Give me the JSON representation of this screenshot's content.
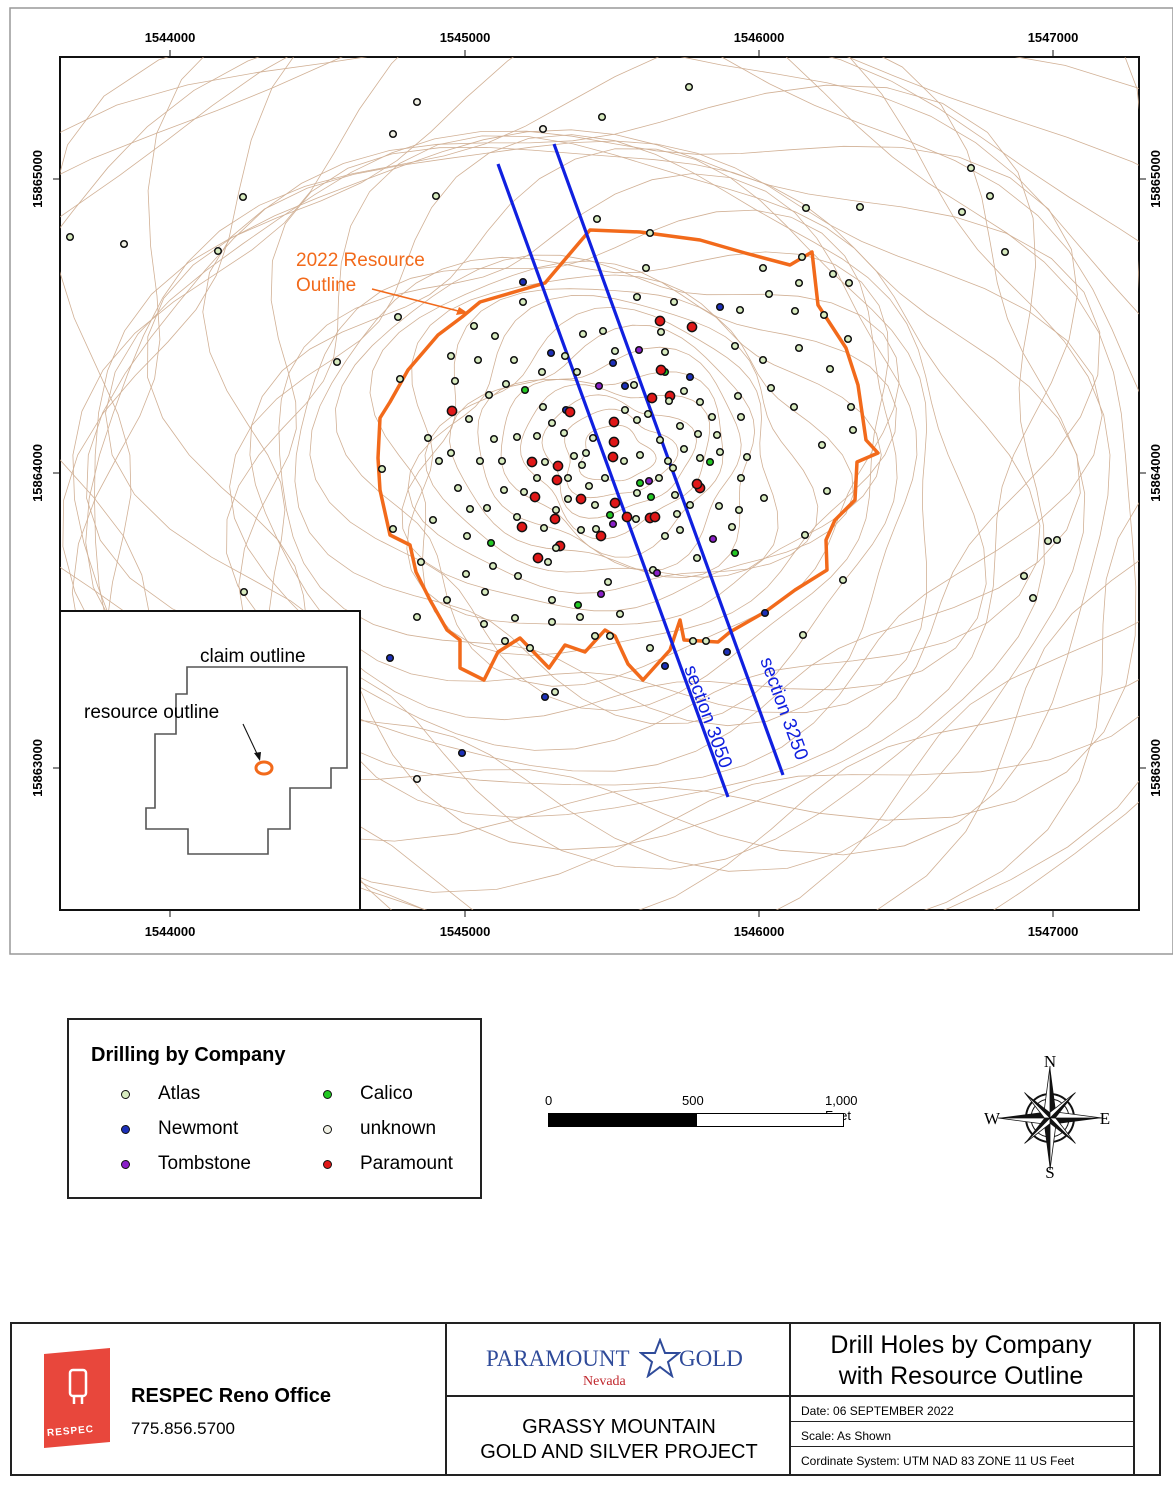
{
  "map": {
    "x_ticks": [
      "1544000",
      "1545000",
      "1546000",
      "1547000"
    ],
    "y_ticks": [
      "15865000",
      "15864000",
      "15863000"
    ],
    "resource_label_line1": "2022 Resource",
    "resource_label_line2": "Outline",
    "section_3050": "section 3050",
    "section_3250": "section 3250",
    "colors": {
      "resource_outline": "#f26a1b",
      "section_line": "#1020e0",
      "contour": "#c8a080"
    }
  },
  "inset": {
    "claim_label": "claim outline",
    "resource_label": "resource outline"
  },
  "legend": {
    "title": "Drilling by Company",
    "items": [
      {
        "label": "Atlas",
        "color": "#d8ecc0"
      },
      {
        "label": "Newmont",
        "color": "#1c2fb8"
      },
      {
        "label": "Tombstone",
        "color": "#8a1fc8"
      },
      {
        "label": "Calico",
        "color": "#22c822"
      },
      {
        "label": "unknown",
        "color": "#f2f2e6"
      },
      {
        "label": "Paramount",
        "color": "#e01818"
      }
    ]
  },
  "scalebar": {
    "label_0": "0",
    "label_mid": "500",
    "label_end": "1,000 Feet"
  },
  "compass": {
    "n": "N",
    "e": "E",
    "s": "S",
    "w": "W"
  },
  "titleblock": {
    "office": "RESPEC Reno Office",
    "phone": "775.856.5700",
    "logo_text": "RESPEC",
    "client_logo_main_left": "PARAMOUNT",
    "client_logo_main_right": "GOLD",
    "client_logo_sub": "Nevada",
    "project_line1": "GRASSY MOUNTAIN",
    "project_line2": "GOLD AND SILVER PROJECT",
    "title_line1": "Drill Holes by Company",
    "title_line2": "with Resource Outline",
    "date": "Date: 06 SEPTEMBER 2022",
    "scale": "Scale: As Shown",
    "crs": "Cordinate System: UTM NAD 83 ZONE 11 US Feet"
  }
}
